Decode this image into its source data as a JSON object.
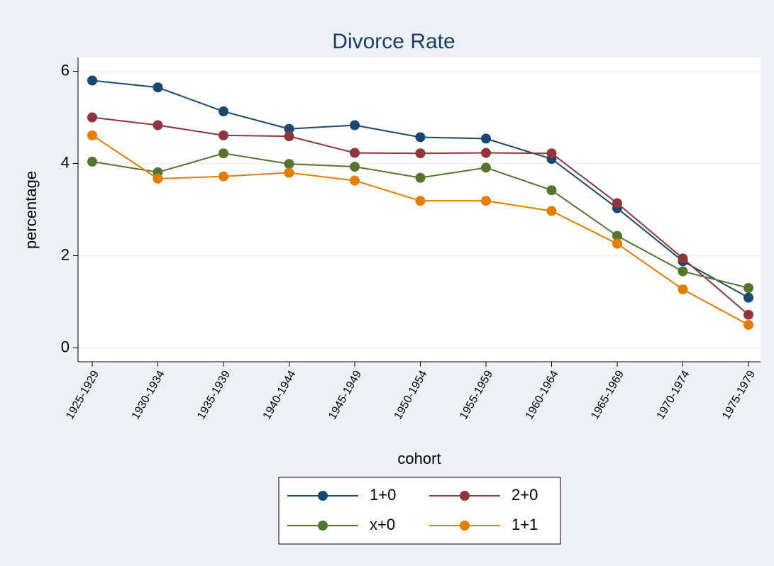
{
  "chart_data": {
    "type": "line",
    "title": "Divorce Rate",
    "y_label": "percentage",
    "x_label": "cohort",
    "categories": [
      "1925-1929",
      "1930-1934",
      "1935-1939",
      "1940-1944",
      "1945-1949",
      "1950-1954",
      "1955-1959",
      "1960-1964",
      "1965-1969",
      "1970-1974",
      "1975-1979"
    ],
    "series": [
      {
        "name": "1+0",
        "color": "#1a476f",
        "values": [
          5.8,
          5.65,
          5.13,
          4.75,
          4.83,
          4.57,
          4.54,
          4.1,
          3.03,
          1.88,
          1.09
        ]
      },
      {
        "name": "2+0",
        "color": "#90353b",
        "values": [
          5.0,
          4.83,
          4.61,
          4.59,
          4.23,
          4.22,
          4.23,
          4.22,
          3.14,
          1.94,
          0.72
        ]
      },
      {
        "name": "x+0",
        "color": "#55752f",
        "values": [
          4.04,
          3.81,
          4.22,
          3.99,
          3.93,
          3.69,
          3.91,
          3.42,
          2.43,
          1.66,
          1.3
        ]
      },
      {
        "name": "1+1",
        "color": "#e37e00",
        "values": [
          4.61,
          3.67,
          3.72,
          3.8,
          3.63,
          3.19,
          3.19,
          2.97,
          2.26,
          1.27,
          0.5
        ]
      }
    ],
    "ylim": [
      -0.3,
      6.3
    ],
    "yticks": [
      0,
      2,
      4,
      6
    ],
    "grid": true,
    "legend_position": "bottom"
  }
}
